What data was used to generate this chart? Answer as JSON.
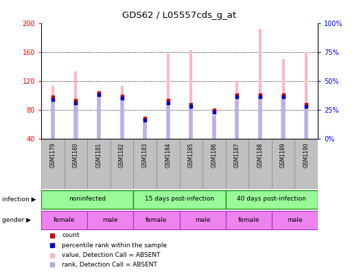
{
  "title": "GDS62 / L05557cds_g_at",
  "samples": [
    "GSM1179",
    "GSM1180",
    "GSM1181",
    "GSM1182",
    "GSM1183",
    "GSM1184",
    "GSM1185",
    "GSM1186",
    "GSM1187",
    "GSM1188",
    "GSM1189",
    "GSM1190"
  ],
  "value_absent": [
    113,
    133,
    97,
    113,
    70,
    158,
    163,
    70,
    120,
    192,
    150,
    160
  ],
  "rank_absent_pct": [
    36,
    33,
    40,
    37,
    18,
    33,
    30,
    25,
    38,
    38,
    38,
    30
  ],
  "count_pct": [
    36,
    33,
    40,
    37,
    18,
    33,
    30,
    25,
    38,
    38,
    38,
    30
  ],
  "percentile_pct": [
    34,
    31,
    38,
    35,
    16,
    31,
    28,
    23,
    36,
    36,
    36,
    28
  ],
  "ylim_left": [
    40,
    200
  ],
  "ylim_right": [
    0,
    100
  ],
  "yticks_left": [
    40,
    80,
    120,
    160,
    200
  ],
  "yticks_right": [
    0,
    25,
    50,
    75,
    100
  ],
  "ytick_labels_right": [
    "0%",
    "25%",
    "50%",
    "75%",
    "100%"
  ],
  "hgrid_lines": [
    80,
    120,
    160
  ],
  "infection_groups": [
    {
      "label": "noninfected",
      "start": 0,
      "end": 4,
      "color": "#98FB98"
    },
    {
      "label": "15 days post-infection",
      "start": 4,
      "end": 8,
      "color": "#98FB98"
    },
    {
      "label": "40 days post-infection",
      "start": 8,
      "end": 12,
      "color": "#98FB98"
    }
  ],
  "gender_groups": [
    {
      "label": "female",
      "start": 0,
      "end": 2,
      "color": "#EE82EE"
    },
    {
      "label": "male",
      "start": 2,
      "end": 4,
      "color": "#EE82EE"
    },
    {
      "label": "female",
      "start": 4,
      "end": 6,
      "color": "#EE82EE"
    },
    {
      "label": "male",
      "start": 6,
      "end": 8,
      "color": "#EE82EE"
    },
    {
      "label": "female",
      "start": 8,
      "end": 10,
      "color": "#EE82EE"
    },
    {
      "label": "male",
      "start": 10,
      "end": 12,
      "color": "#EE82EE"
    }
  ],
  "bar_color_absent": "#FFB6C1",
  "rank_color_absent": "#AAAAEE",
  "count_color": "#CC0000",
  "percentile_color": "#0000CC",
  "sample_bg_color": "#C0C0C0",
  "infection_border_color": "#228B22",
  "background_color": "#FFFFFF",
  "bar_width": 0.12,
  "rank_bar_width": 0.18,
  "legend_items": [
    {
      "color": "#CC0000",
      "label": "count"
    },
    {
      "color": "#0000CC",
      "label": "percentile rank within the sample"
    },
    {
      "color": "#FFB6C1",
      "label": "value, Detection Call = ABSENT"
    },
    {
      "color": "#AAAAEE",
      "label": "rank, Detection Call = ABSENT"
    }
  ]
}
